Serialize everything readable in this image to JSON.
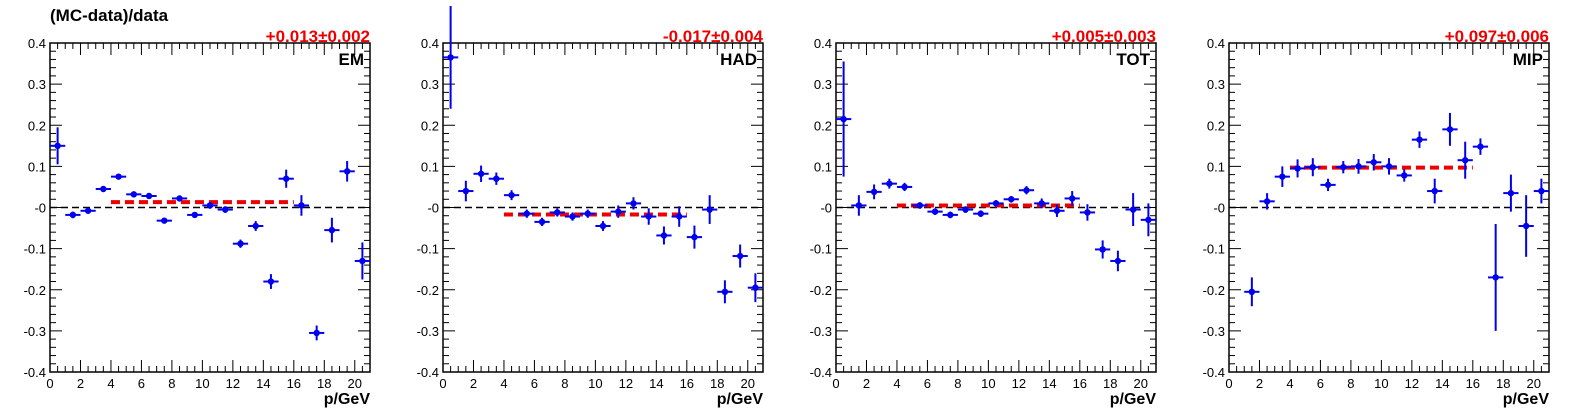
{
  "figure": {
    "title": "(MC-data)/data"
  },
  "colors": {
    "points": "#0000ee",
    "fit": "#ee0000",
    "axis": "#000000",
    "zero": "#000000"
  },
  "chart_data": [
    {
      "type": "scatter",
      "label": "EM",
      "fit_text": "+0.013±0.002",
      "fit_value": 0.013,
      "fit_range": [
        4,
        16
      ],
      "xlabel": "p/GeV",
      "ylabel": "",
      "xlim": [
        0,
        21
      ],
      "ylim": [
        -0.4,
        0.4
      ],
      "xticks": [
        0,
        2,
        4,
        6,
        8,
        10,
        12,
        14,
        16,
        18,
        20
      ],
      "yticks": [
        -0.4,
        -0.3,
        -0.2,
        -0.1,
        0,
        0.1,
        0.2,
        0.3,
        0.4
      ],
      "ytick_labels": [
        "-0.4",
        "-0.3",
        "-0.2",
        "-0.1",
        "-0",
        "0.1",
        "0.2",
        "0.3",
        "0.4"
      ],
      "x": [
        0.5,
        1.5,
        2.5,
        3.5,
        4.5,
        5.5,
        6.5,
        7.5,
        8.5,
        9.5,
        10.5,
        11.5,
        12.5,
        13.5,
        14.5,
        15.5,
        16.5,
        17.5,
        18.5,
        19.5,
        20.5
      ],
      "y": [
        0.15,
        -0.018,
        -0.008,
        0.045,
        0.075,
        0.032,
        0.028,
        -0.032,
        0.022,
        -0.018,
        0.005,
        -0.005,
        -0.088,
        -0.045,
        -0.18,
        0.07,
        0.005,
        -0.305,
        -0.055,
        0.088,
        -0.13
      ],
      "yerr": [
        0.045,
        0.008,
        0.006,
        0.006,
        0.006,
        0.006,
        0.006,
        0.006,
        0.006,
        0.007,
        0.008,
        0.008,
        0.01,
        0.012,
        0.018,
        0.022,
        0.025,
        0.018,
        0.03,
        0.025,
        0.045
      ]
    },
    {
      "type": "scatter",
      "label": "HAD",
      "fit_text": "-0.017±0.004",
      "fit_value": -0.017,
      "fit_range": [
        4,
        16
      ],
      "xlabel": "p/GeV",
      "ylabel": "",
      "xlim": [
        0,
        21
      ],
      "ylim": [
        -0.4,
        0.4
      ],
      "xticks": [
        0,
        2,
        4,
        6,
        8,
        10,
        12,
        14,
        16,
        18,
        20
      ],
      "yticks": [
        -0.4,
        -0.3,
        -0.2,
        -0.1,
        0,
        0.1,
        0.2,
        0.3,
        0.4
      ],
      "ytick_labels": [
        "-0.4",
        "-0.3",
        "-0.2",
        "-0.1",
        "-0",
        "0.1",
        "0.2",
        "0.3",
        "0.4"
      ],
      "x": [
        0.5,
        1.5,
        2.5,
        3.5,
        4.5,
        5.5,
        6.5,
        7.5,
        8.5,
        9.5,
        10.5,
        11.5,
        12.5,
        13.5,
        14.5,
        15.5,
        16.5,
        17.5,
        18.5,
        19.5,
        20.5
      ],
      "y": [
        0.365,
        0.04,
        0.082,
        0.07,
        0.03,
        -0.015,
        -0.035,
        -0.012,
        -0.022,
        -0.015,
        -0.045,
        -0.01,
        0.01,
        -0.022,
        -0.068,
        -0.022,
        -0.072,
        -0.005,
        -0.205,
        -0.118,
        -0.195
      ],
      "yerr": [
        0.125,
        0.025,
        0.02,
        0.015,
        0.012,
        0.01,
        0.01,
        0.01,
        0.01,
        0.01,
        0.012,
        0.015,
        0.015,
        0.02,
        0.022,
        0.025,
        0.028,
        0.035,
        0.028,
        0.028,
        0.035
      ]
    },
    {
      "type": "scatter",
      "label": "TOT",
      "fit_text": "+0.005±0.003",
      "fit_value": 0.005,
      "fit_range": [
        4,
        16
      ],
      "xlabel": "p/GeV",
      "ylabel": "",
      "xlim": [
        0,
        21
      ],
      "ylim": [
        -0.4,
        0.4
      ],
      "xticks": [
        0,
        2,
        4,
        6,
        8,
        10,
        12,
        14,
        16,
        18,
        20
      ],
      "yticks": [
        -0.4,
        -0.3,
        -0.2,
        -0.1,
        0,
        0.1,
        0.2,
        0.3,
        0.4
      ],
      "ytick_labels": [
        "-0.4",
        "-0.3",
        "-0.2",
        "-0.1",
        "-0",
        "0.1",
        "0.2",
        "0.3",
        "0.4"
      ],
      "x": [
        0.5,
        1.5,
        2.5,
        3.5,
        4.5,
        5.5,
        6.5,
        7.5,
        8.5,
        9.5,
        10.5,
        11.5,
        12.5,
        13.5,
        14.5,
        15.5,
        16.5,
        17.5,
        18.5,
        19.5,
        20.5
      ],
      "y": [
        0.215,
        0.005,
        0.038,
        0.058,
        0.05,
        0.005,
        -0.01,
        -0.018,
        -0.005,
        -0.015,
        0.01,
        0.02,
        0.042,
        0.01,
        -0.008,
        0.022,
        -0.012,
        -0.102,
        -0.13,
        -0.005,
        -0.03
      ],
      "yerr": [
        0.14,
        0.025,
        0.018,
        0.012,
        0.01,
        0.008,
        0.008,
        0.008,
        0.008,
        0.008,
        0.008,
        0.008,
        0.01,
        0.012,
        0.015,
        0.018,
        0.02,
        0.022,
        0.025,
        0.04,
        0.04
      ]
    },
    {
      "type": "scatter",
      "label": "MIP",
      "fit_text": "+0.097±0.006",
      "fit_value": 0.097,
      "fit_range": [
        4,
        16
      ],
      "xlabel": "p/GeV",
      "ylabel": "",
      "xlim": [
        0,
        21
      ],
      "ylim": [
        -0.4,
        0.4
      ],
      "xticks": [
        0,
        2,
        4,
        6,
        8,
        10,
        12,
        14,
        16,
        18,
        20
      ],
      "yticks": [
        -0.4,
        -0.3,
        -0.2,
        -0.1,
        0,
        0.1,
        0.2,
        0.3,
        0.4
      ],
      "ytick_labels": [
        "-0.4",
        "-0.3",
        "-0.2",
        "-0.1",
        "-0",
        "0.1",
        "0.2",
        "0.3",
        "0.4"
      ],
      "x": [
        1.5,
        2.5,
        3.5,
        4.5,
        5.5,
        6.5,
        7.5,
        8.5,
        9.5,
        10.5,
        11.5,
        12.5,
        13.5,
        14.5,
        15.5,
        16.5,
        17.5,
        18.5,
        19.5,
        20.5
      ],
      "y": [
        -0.205,
        0.015,
        0.075,
        0.095,
        0.098,
        0.055,
        0.098,
        0.1,
        0.11,
        0.1,
        0.078,
        0.165,
        0.04,
        0.19,
        0.115,
        0.148,
        -0.17,
        0.035,
        -0.045,
        0.04
      ],
      "yerr": [
        0.035,
        0.02,
        0.025,
        0.022,
        0.022,
        0.015,
        0.015,
        0.018,
        0.02,
        0.02,
        0.015,
        0.02,
        0.03,
        0.04,
        0.045,
        0.02,
        0.13,
        0.045,
        0.075,
        0.03
      ]
    }
  ]
}
